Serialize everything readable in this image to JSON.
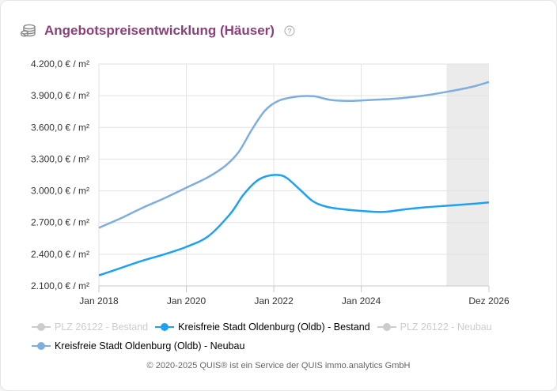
{
  "header": {
    "title": "Angebotspreisentwicklung (Häuser)",
    "icon": "coin-stack-icon",
    "help_icon": "help-circle-icon"
  },
  "chart_data": {
    "type": "line",
    "title": "Angebotspreisentwicklung (Häuser)",
    "xlabel": "",
    "ylabel": "",
    "x_range": [
      2018.0,
      2026.92
    ],
    "x_ticks": [
      {
        "x": 2018.0,
        "label": "Jan 2018"
      },
      {
        "x": 2020.0,
        "label": "Jan 2020"
      },
      {
        "x": 2022.0,
        "label": "Jan 2022"
      },
      {
        "x": 2024.0,
        "label": "Jan 2024"
      },
      {
        "x": 2026.92,
        "label": "Dez 2026"
      }
    ],
    "ylim": [
      2100,
      4200
    ],
    "y_ticks": [
      {
        "y": 2100,
        "label": "2.100,0 € / m²"
      },
      {
        "y": 2400,
        "label": "2.400,0 € / m²"
      },
      {
        "y": 2700,
        "label": "2.700,0 € / m²"
      },
      {
        "y": 3000,
        "label": "3.000,0 € / m²"
      },
      {
        "y": 3300,
        "label": "3.300,0 € / m²"
      },
      {
        "y": 3600,
        "label": "3.600,0 € / m²"
      },
      {
        "y": 3900,
        "label": "3.900,0 € / m²"
      },
      {
        "y": 4200,
        "label": "4.200,0 € / m²"
      }
    ],
    "forecast_band": [
      2025.95,
      2026.92
    ],
    "grid": true,
    "series": [
      {
        "name": "PLZ 26122 - Bestand",
        "visible": false,
        "color": "#cccccc",
        "x": [],
        "values": []
      },
      {
        "name": "Kreisfreie Stadt Oldenburg (Oldb) - Bestand",
        "visible": true,
        "color": "#1da1f2",
        "x": [
          2018.0,
          2018.5,
          2019.0,
          2019.5,
          2020.0,
          2020.5,
          2021.0,
          2021.3,
          2021.6,
          2021.85,
          2022.1,
          2022.3,
          2022.6,
          2022.9,
          2023.2,
          2023.6,
          2024.0,
          2024.5,
          2025.0,
          2025.5,
          2026.0,
          2026.5,
          2026.92
        ],
        "values": [
          2200,
          2270,
          2340,
          2400,
          2470,
          2570,
          2780,
          2960,
          3090,
          3140,
          3150,
          3120,
          3010,
          2900,
          2850,
          2825,
          2810,
          2800,
          2825,
          2845,
          2860,
          2875,
          2890
        ]
      },
      {
        "name": "PLZ 26122 - Neubau",
        "visible": false,
        "color": "#cccccc",
        "x": [],
        "values": []
      },
      {
        "name": "Kreisfreie Stadt Oldenburg (Oldb) - Neubau",
        "visible": true,
        "color": "#7eaee0",
        "x": [
          2018.0,
          2018.5,
          2019.0,
          2019.5,
          2020.0,
          2020.5,
          2020.9,
          2021.2,
          2021.5,
          2021.8,
          2022.1,
          2022.5,
          2022.9,
          2023.3,
          2023.7,
          2024.0,
          2024.5,
          2025.0,
          2025.5,
          2026.0,
          2026.5,
          2026.92
        ],
        "values": [
          2650,
          2740,
          2840,
          2930,
          3030,
          3130,
          3240,
          3370,
          3580,
          3760,
          3850,
          3890,
          3895,
          3860,
          3850,
          3855,
          3865,
          3880,
          3905,
          3940,
          3980,
          4030
        ]
      }
    ]
  },
  "legend": {
    "items": [
      {
        "label": "PLZ 26122 - Bestand",
        "visible": false
      },
      {
        "label": "Kreisfreie Stadt Oldenburg (Oldb) - Bestand",
        "visible": true
      },
      {
        "label": "PLZ 26122 - Neubau",
        "visible": false
      },
      {
        "label": "Kreisfreie Stadt Oldenburg (Oldb) - Neubau",
        "visible": true
      }
    ]
  },
  "footer": {
    "copyright": "© 2020-2025 QUIS® ist ein Service der QUIS immo.analytics GmbH"
  },
  "colors": {
    "title": "#8c3f78",
    "grid": "#e2e2e2",
    "forecast_band": "#ebebeb",
    "axis": "#c8c8c8"
  }
}
